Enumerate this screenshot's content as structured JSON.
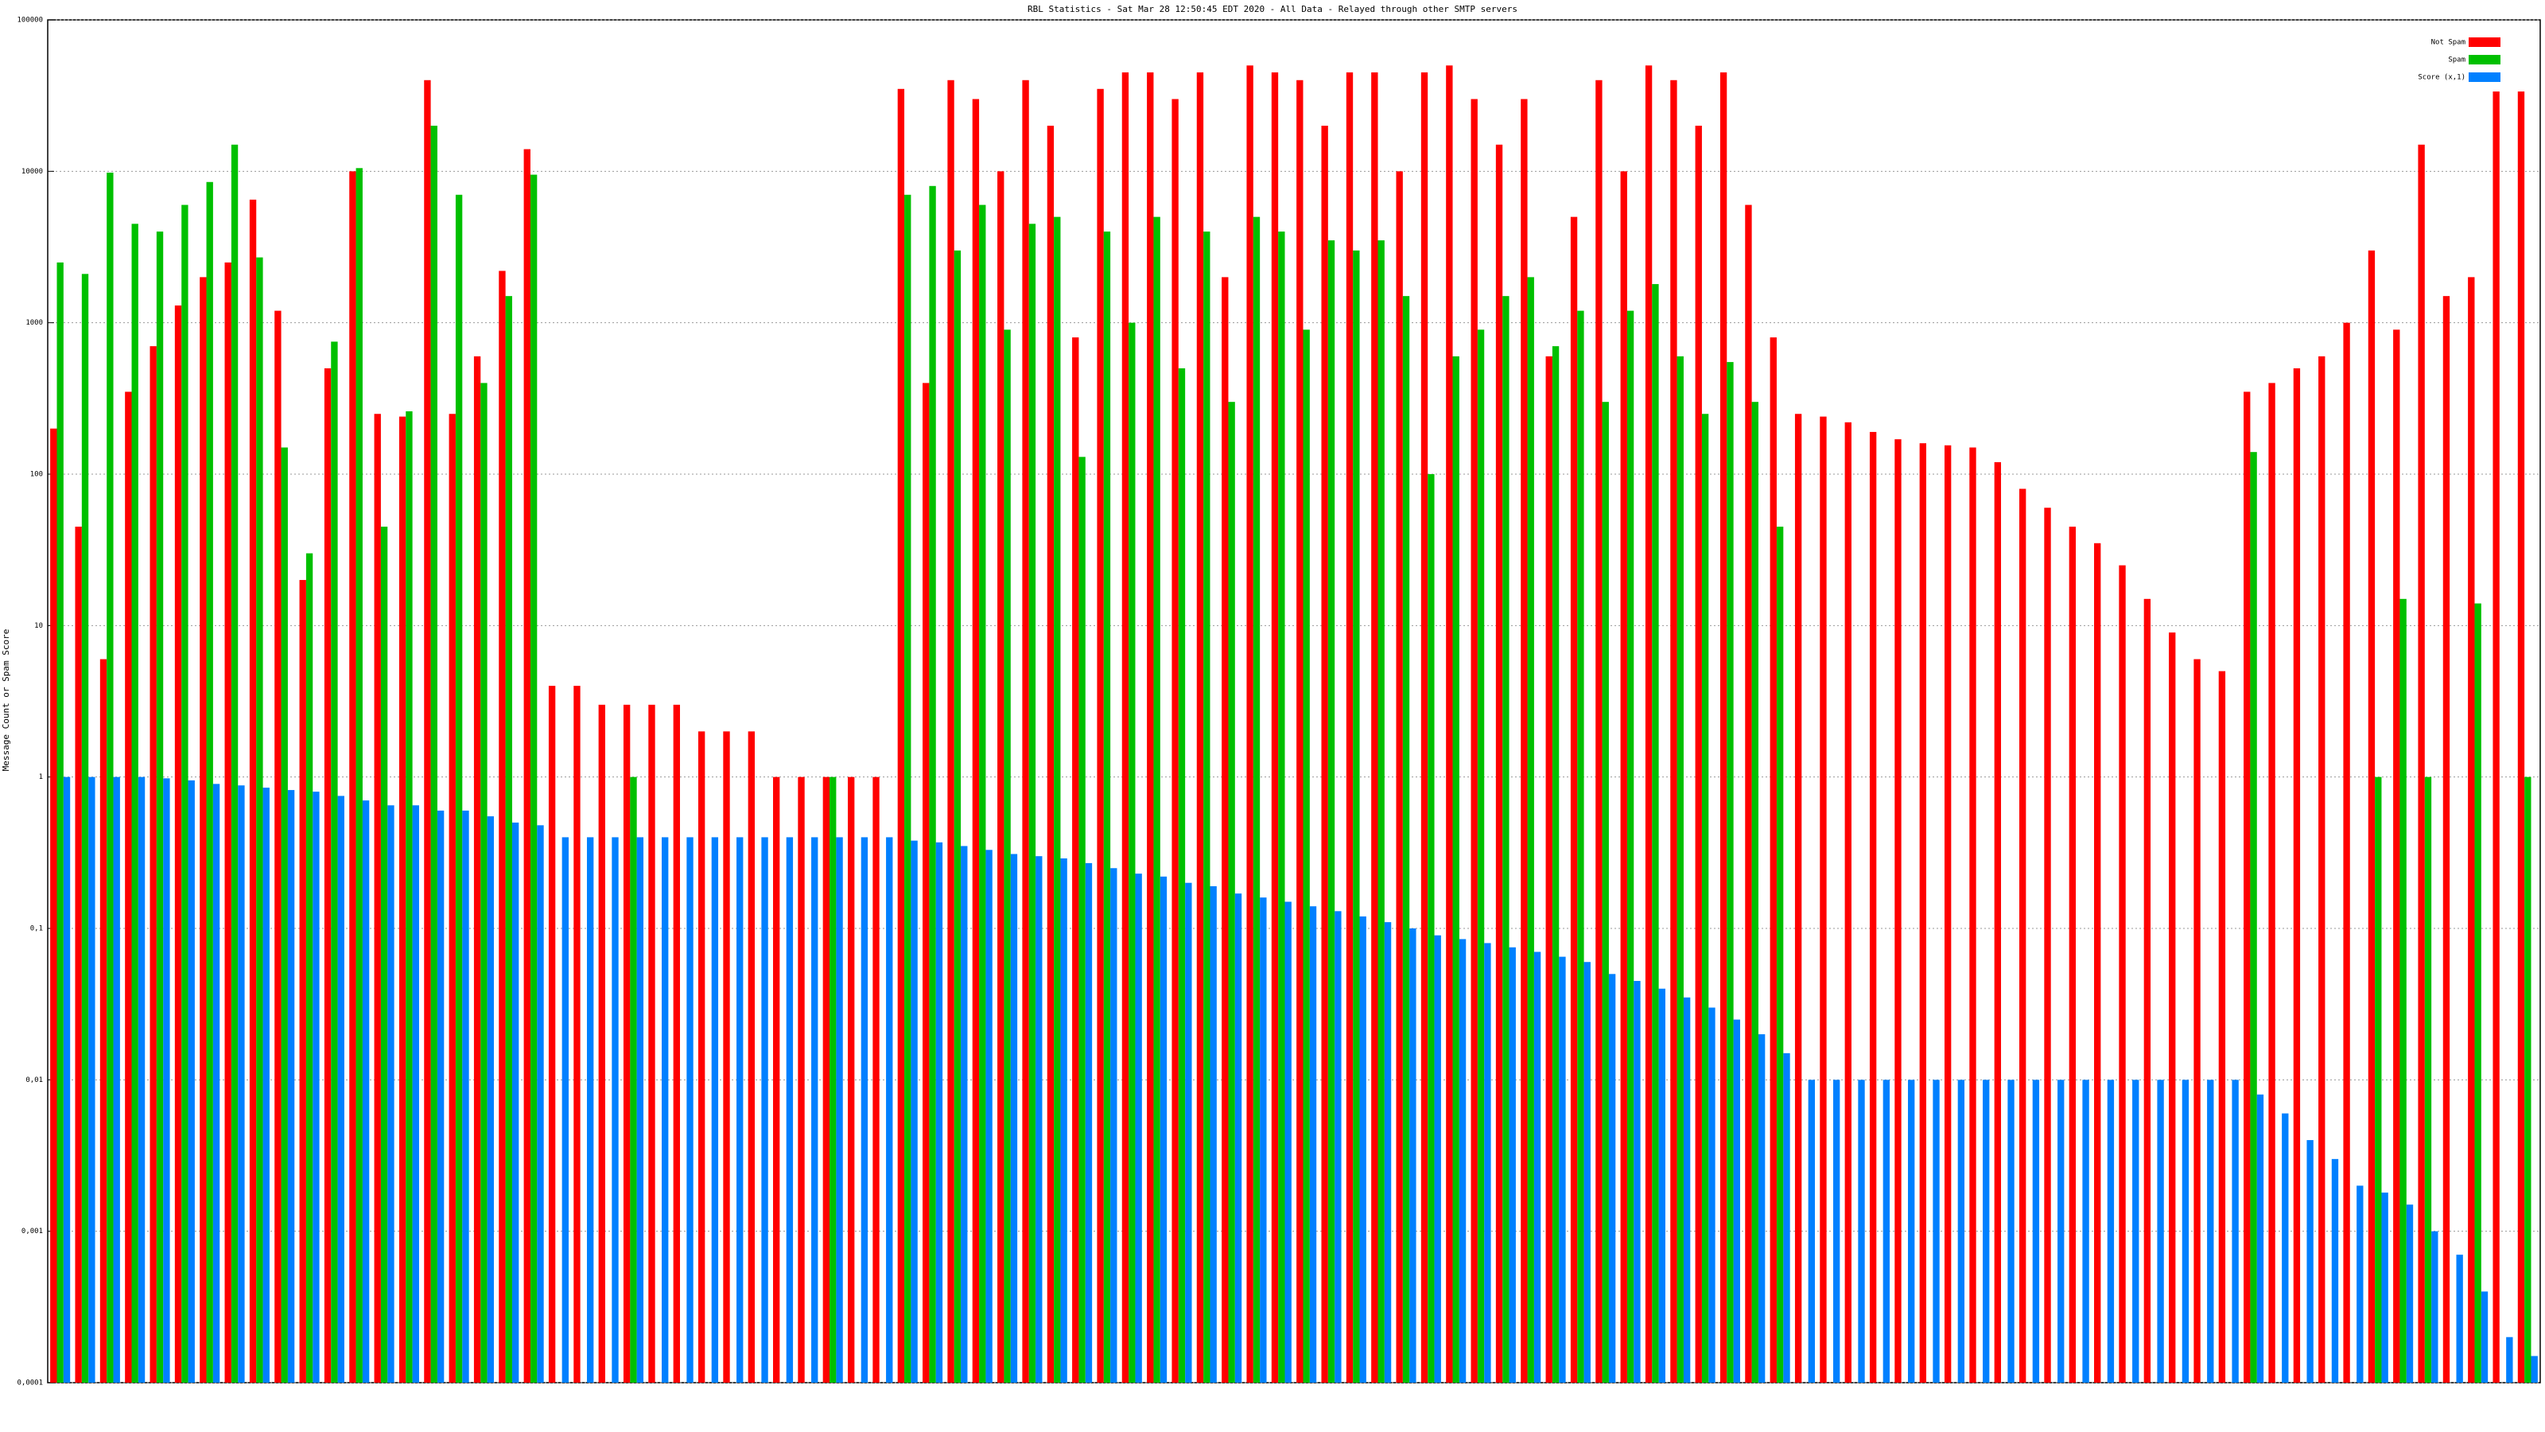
{
  "chart_data": {
    "type": "bar",
    "title": "RBL Statistics - Sat Mar 28 12:50:45 EDT 2020 - All Data - Relayed through other SMTP servers",
    "y_label": "Message Count or Spam Score",
    "log_scale": true,
    "grid": true,
    "legend": "top-right",
    "ylim": [
      0.0001,
      100000
    ],
    "yticks": [
      {
        "value": 0.0001,
        "label": "0,0001"
      },
      {
        "value": 0.001,
        "label": "0,001"
      },
      {
        "value": 0.01,
        "label": "0,01"
      },
      {
        "value": 0.1,
        "label": "0,1"
      },
      1,
      10,
      100,
      1000,
      10000,
      100000
    ],
    "categories": [
      null,
      null,
      null,
      null,
      null,
      null,
      null,
      null,
      null,
      null,
      null,
      null,
      null,
      null,
      null,
      null,
      null,
      null,
      null,
      null,
      null,
      null,
      null,
      null,
      null,
      null,
      null,
      null,
      null,
      null,
      null,
      null,
      null,
      null,
      null,
      null,
      null,
      null,
      null,
      null,
      null,
      null,
      null,
      null,
      null,
      null,
      null,
      null,
      null,
      null,
      null,
      null,
      null,
      null,
      null,
      null,
      null,
      null,
      null,
      null,
      null,
      null,
      null,
      null,
      null,
      null,
      null,
      null,
      null,
      null,
      null,
      null,
      null,
      null,
      null,
      null,
      null,
      null,
      null,
      null,
      null,
      null,
      null,
      null,
      null,
      null,
      null,
      null,
      null,
      null,
      null,
      null,
      null,
      null,
      null,
      null,
      null,
      null,
      null,
      null
    ],
    "series": [
      {
        "name": "Not Spam",
        "color": "#ff0000",
        "values": [
          200,
          45,
          6,
          350,
          700,
          1300,
          2000,
          2500,
          6500,
          1200,
          20,
          500,
          10000,
          250,
          240,
          40000,
          250,
          600,
          2200,
          14000,
          4,
          4,
          3,
          3,
          3,
          3,
          2,
          2,
          2,
          1,
          1,
          1,
          1,
          1,
          35000,
          400,
          40000,
          30000,
          10000,
          40000,
          20000,
          800,
          35000,
          45000,
          45000,
          30000,
          45000,
          2000,
          50000,
          45000,
          40000,
          20000,
          45000,
          45000,
          10000,
          45000,
          50000,
          30000,
          15000,
          30000,
          600,
          5000,
          40000,
          10000,
          50000,
          40000,
          20000,
          45000,
          6000,
          800,
          250,
          240,
          220,
          190,
          170,
          160,
          155,
          150,
          120,
          80,
          60,
          45,
          35,
          25,
          15,
          9,
          6,
          5,
          350,
          400,
          500,
          600,
          1000,
          3000,
          900,
          15000,
          1500,
          2000,
          35000,
          40000
        ]
      },
      {
        "name": "Spam",
        "color": "#00c000",
        "values": [
          2500,
          2100,
          9800,
          4500,
          4000,
          6000,
          8500,
          15000,
          2700,
          150,
          30,
          750,
          10500,
          45,
          260,
          20000,
          7000,
          400,
          1500,
          9500,
          null,
          null,
          null,
          1,
          null,
          null,
          null,
          null,
          null,
          null,
          null,
          1,
          null,
          null,
          7000,
          8000,
          3000,
          6000,
          900,
          4500,
          5000,
          130,
          4000,
          1000,
          5000,
          500,
          4000,
          300,
          5000,
          4000,
          900,
          3500,
          3000,
          3500,
          1500,
          100,
          600,
          900,
          1500,
          2000,
          700,
          1200,
          300,
          1200,
          1800,
          600,
          250,
          550,
          300,
          45,
          null,
          null,
          null,
          null,
          null,
          null,
          null,
          null,
          null,
          null,
          null,
          null,
          null,
          null,
          null,
          null,
          null,
          null,
          140,
          null,
          null,
          null,
          null,
          1,
          15,
          1,
          null,
          14,
          null,
          1
        ]
      },
      {
        "name": "Score (x,1)",
        "color": "#0080ff",
        "values": [
          1,
          1,
          1,
          1,
          0.98,
          0.95,
          0.9,
          0.88,
          0.85,
          0.82,
          0.8,
          0.75,
          0.7,
          0.65,
          0.65,
          0.6,
          0.6,
          0.55,
          0.5,
          0.48,
          0.4,
          0.4,
          0.4,
          0.4,
          0.4,
          0.4,
          0.4,
          0.4,
          0.4,
          0.4,
          0.4,
          0.4,
          0.4,
          0.4,
          0.38,
          0.37,
          0.35,
          0.33,
          0.31,
          0.3,
          0.29,
          0.27,
          0.25,
          0.23,
          0.22,
          0.2,
          0.19,
          0.17,
          0.16,
          0.15,
          0.14,
          0.13,
          0.12,
          0.11,
          0.1,
          0.09,
          0.085,
          0.08,
          0.075,
          0.07,
          0.065,
          0.06,
          0.05,
          0.045,
          0.04,
          0.035,
          0.03,
          0.025,
          0.02,
          0.015,
          0.01,
          0.01,
          0.01,
          0.01,
          0.01,
          0.01,
          0.01,
          0.01,
          0.01,
          0.01,
          0.01,
          0.01,
          0.01,
          0.01,
          0.01,
          0.01,
          0.01,
          0.01,
          0.008,
          0.006,
          0.004,
          0.003,
          0.002,
          0.0018,
          0.0015,
          0.001,
          0.0007,
          0.0004,
          0.0002,
          0.00015
        ]
      }
    ]
  }
}
